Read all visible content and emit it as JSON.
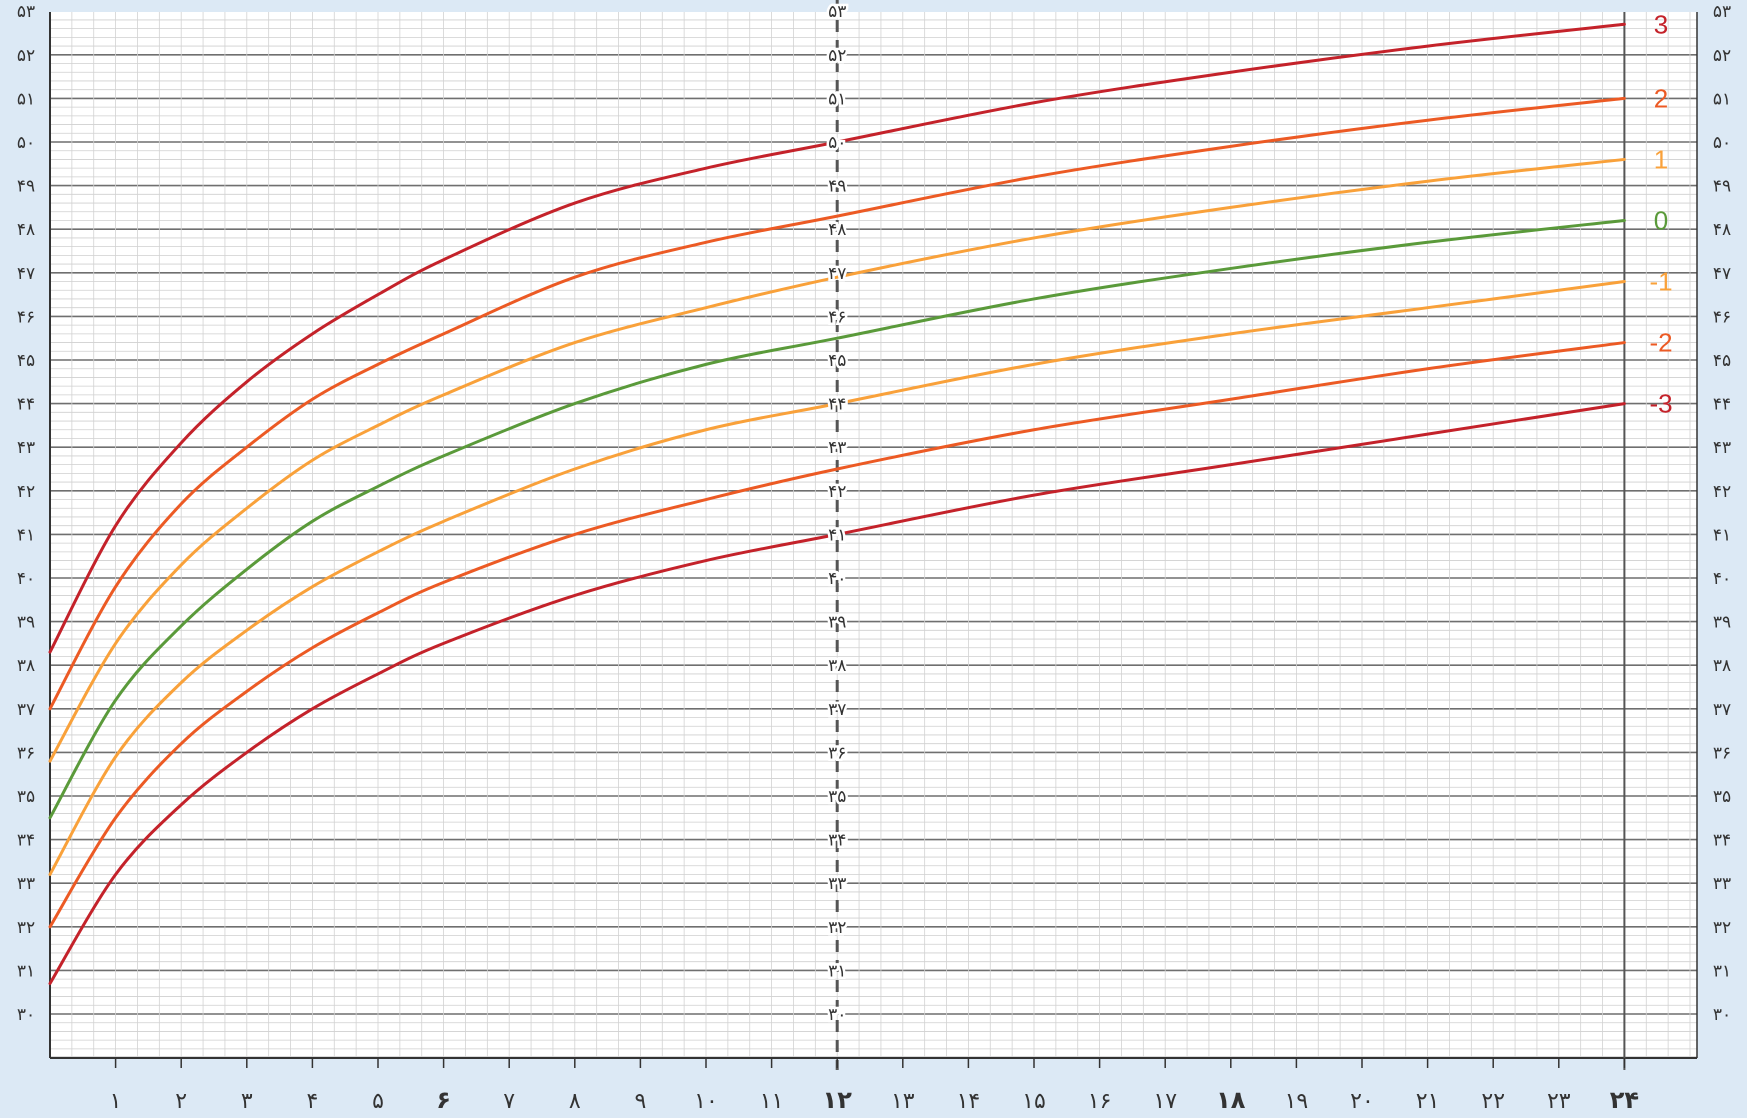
{
  "chart_data": {
    "type": "line",
    "title": "",
    "xlabel": "",
    "ylabel": "",
    "xlim": [
      0,
      25
    ],
    "ylim": [
      29,
      53
    ],
    "grid": true,
    "y_ticks": [
      {
        "v": 30,
        "label": "۳۰"
      },
      {
        "v": 31,
        "label": "۳۱"
      },
      {
        "v": 32,
        "label": "۳۲"
      },
      {
        "v": 33,
        "label": "۳۳"
      },
      {
        "v": 34,
        "label": "۳۴"
      },
      {
        "v": 35,
        "label": "۳۵"
      },
      {
        "v": 36,
        "label": "۳۶"
      },
      {
        "v": 37,
        "label": "۳۷"
      },
      {
        "v": 38,
        "label": "۳۸"
      },
      {
        "v": 39,
        "label": "۳۹"
      },
      {
        "v": 40,
        "label": "۴۰"
      },
      {
        "v": 41,
        "label": "۴۱"
      },
      {
        "v": 42,
        "label": "۴۲"
      },
      {
        "v": 43,
        "label": "۴۳"
      },
      {
        "v": 44,
        "label": "۴۴"
      },
      {
        "v": 45,
        "label": "۴۵"
      },
      {
        "v": 46,
        "label": "۴۶"
      },
      {
        "v": 47,
        "label": "۴۷"
      },
      {
        "v": 48,
        "label": "۴۸"
      },
      {
        "v": 49,
        "label": "۴۹"
      },
      {
        "v": 50,
        "label": "۵۰"
      },
      {
        "v": 51,
        "label": "۵۱"
      },
      {
        "v": 52,
        "label": "۵۲"
      },
      {
        "v": 53,
        "label": "۵۳"
      }
    ],
    "x_ticks": [
      {
        "v": 1,
        "label": "۱"
      },
      {
        "v": 2,
        "label": "۲"
      },
      {
        "v": 3,
        "label": "۳"
      },
      {
        "v": 4,
        "label": "۴"
      },
      {
        "v": 5,
        "label": "۵"
      },
      {
        "v": 6,
        "label": "۶",
        "bold": true
      },
      {
        "v": 7,
        "label": "۷"
      },
      {
        "v": 8,
        "label": "۸"
      },
      {
        "v": 9,
        "label": "۹"
      },
      {
        "v": 10,
        "label": "۱۰"
      },
      {
        "v": 11,
        "label": "۱۱"
      },
      {
        "v": 12,
        "label": "۱۲",
        "bold": true
      },
      {
        "v": 13,
        "label": "۱۳"
      },
      {
        "v": 14,
        "label": "۱۴"
      },
      {
        "v": 15,
        "label": "۱۵"
      },
      {
        "v": 16,
        "label": "۱۶"
      },
      {
        "v": 17,
        "label": "۱۷"
      },
      {
        "v": 18,
        "label": "۱۸",
        "bold": true
      },
      {
        "v": 19,
        "label": "۱۹"
      },
      {
        "v": 20,
        "label": "۲۰"
      },
      {
        "v": 21,
        "label": "۲۱"
      },
      {
        "v": 22,
        "label": "۲۲"
      },
      {
        "v": 23,
        "label": "۲۳"
      },
      {
        "v": 24,
        "label": "۲۴",
        "bold": true
      }
    ],
    "series": [
      {
        "name": "3",
        "color": "#c4222a",
        "x": [
          0,
          1,
          2,
          3,
          4,
          5,
          6,
          8,
          10,
          12,
          15,
          18,
          21,
          24
        ],
        "y": [
          38.3,
          41.2,
          43.1,
          44.5,
          45.6,
          46.5,
          47.3,
          48.6,
          49.4,
          50.0,
          50.9,
          51.6,
          52.2,
          52.7
        ]
      },
      {
        "name": "2",
        "color": "#ec5a24",
        "x": [
          0,
          1,
          2,
          3,
          4,
          5,
          6,
          8,
          10,
          12,
          15,
          18,
          21,
          24
        ],
        "y": [
          37.0,
          39.8,
          41.7,
          43.0,
          44.1,
          44.9,
          45.6,
          46.9,
          47.7,
          48.3,
          49.2,
          49.9,
          50.5,
          51.0
        ]
      },
      {
        "name": "1",
        "color": "#f9a13a",
        "x": [
          0,
          1,
          2,
          3,
          4,
          5,
          6,
          8,
          10,
          12,
          15,
          18,
          21,
          24
        ],
        "y": [
          35.8,
          38.5,
          40.3,
          41.6,
          42.7,
          43.5,
          44.2,
          45.4,
          46.2,
          46.9,
          47.8,
          48.5,
          49.1,
          49.6
        ]
      },
      {
        "name": "0",
        "color": "#5a9a3a",
        "x": [
          0,
          1,
          2,
          3,
          4,
          5,
          6,
          8,
          10,
          12,
          15,
          18,
          21,
          24
        ],
        "y": [
          34.5,
          37.2,
          38.9,
          40.2,
          41.3,
          42.1,
          42.8,
          44.0,
          44.9,
          45.5,
          46.4,
          47.1,
          47.7,
          48.2
        ]
      },
      {
        "name": "-1",
        "color": "#f9a13a",
        "x": [
          0,
          1,
          2,
          3,
          4,
          5,
          6,
          8,
          10,
          12,
          15,
          18,
          21,
          24
        ],
        "y": [
          33.2,
          35.9,
          37.6,
          38.8,
          39.8,
          40.6,
          41.3,
          42.5,
          43.4,
          44.0,
          44.9,
          45.6,
          46.2,
          46.8
        ]
      },
      {
        "name": "-2",
        "color": "#ec5a24",
        "x": [
          0,
          1,
          2,
          3,
          4,
          5,
          6,
          8,
          10,
          12,
          15,
          18,
          21,
          24
        ],
        "y": [
          32.0,
          34.5,
          36.2,
          37.4,
          38.4,
          39.2,
          39.9,
          41.0,
          41.8,
          42.5,
          43.4,
          44.1,
          44.8,
          45.4
        ]
      },
      {
        "name": "-3",
        "color": "#c4222a",
        "x": [
          0,
          1,
          2,
          3,
          4,
          5,
          6,
          8,
          10,
          12,
          15,
          18,
          21,
          24
        ],
        "y": [
          30.7,
          33.2,
          34.8,
          36.0,
          37.0,
          37.8,
          38.5,
          39.6,
          40.4,
          41.0,
          41.9,
          42.6,
          43.3,
          44.0
        ]
      }
    ]
  }
}
